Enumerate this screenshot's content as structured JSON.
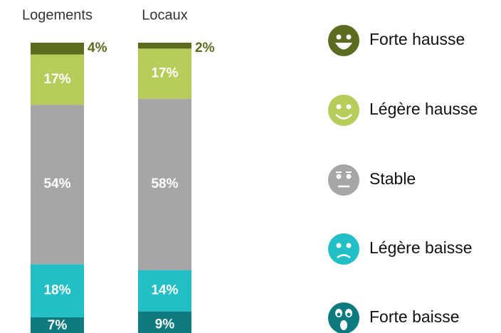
{
  "chart_data": {
    "type": "stacked-bar",
    "categories": [
      "Logements",
      "Locaux"
    ],
    "series": [
      {
        "name": "Forte hausse",
        "color": "#5b6b1f",
        "values": [
          4,
          2
        ],
        "value_labels": [
          "4%",
          "2%"
        ]
      },
      {
        "name": "Légère hausse",
        "color": "#b6cc5b",
        "values": [
          17,
          17
        ],
        "value_labels": [
          "17%",
          "17%"
        ]
      },
      {
        "name": "Stable",
        "color": "#a6a6a6",
        "values": [
          54,
          58
        ],
        "value_labels": [
          "54%",
          "58%"
        ]
      },
      {
        "name": "Légère baisse",
        "color": "#23bfc6",
        "values": [
          18,
          14
        ],
        "value_labels": [
          "18%",
          "14%"
        ]
      },
      {
        "name": "Forte baisse",
        "color": "#0c7a7f",
        "values": [
          7,
          9
        ],
        "value_labels": [
          "7%",
          "9%"
        ]
      }
    ]
  }
}
